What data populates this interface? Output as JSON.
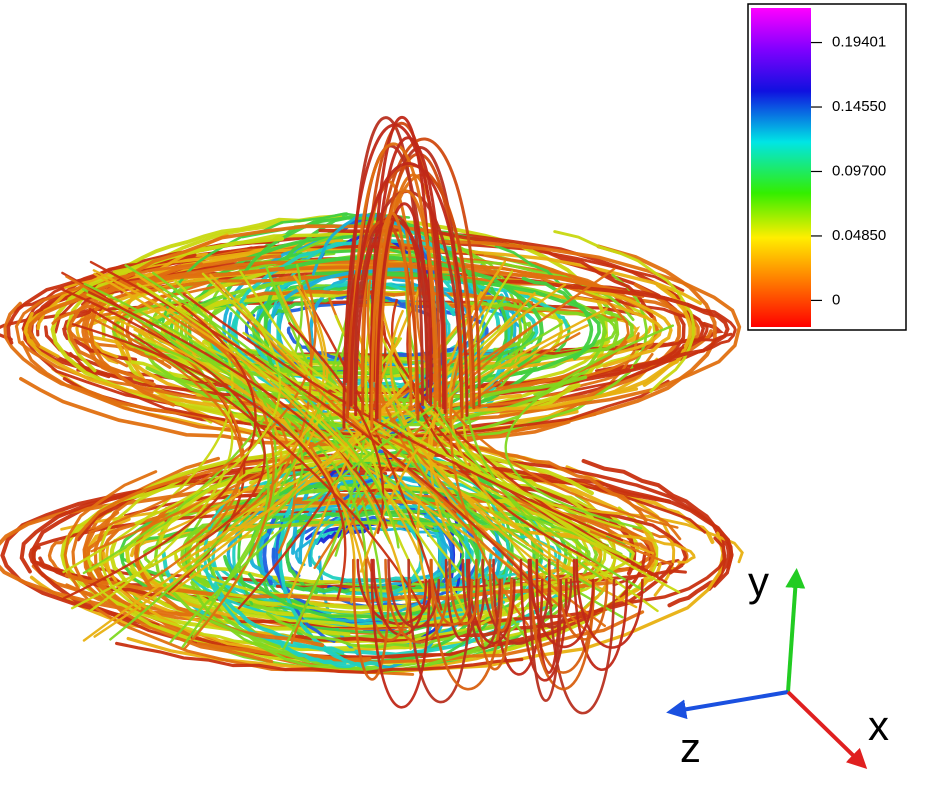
{
  "colorbar": {
    "lim": [
      -0.02,
      0.22
    ],
    "ticks": [
      {
        "value": 0.19401,
        "label": "0.19401"
      },
      {
        "value": 0.1455,
        "label": "0.14550"
      },
      {
        "value": 0.097,
        "label": "0.09700"
      },
      {
        "value": 0.0485,
        "label": "0.04850"
      },
      0
    ]
  },
  "axes": {
    "y": "y",
    "z": "z",
    "x": "x"
  }
}
